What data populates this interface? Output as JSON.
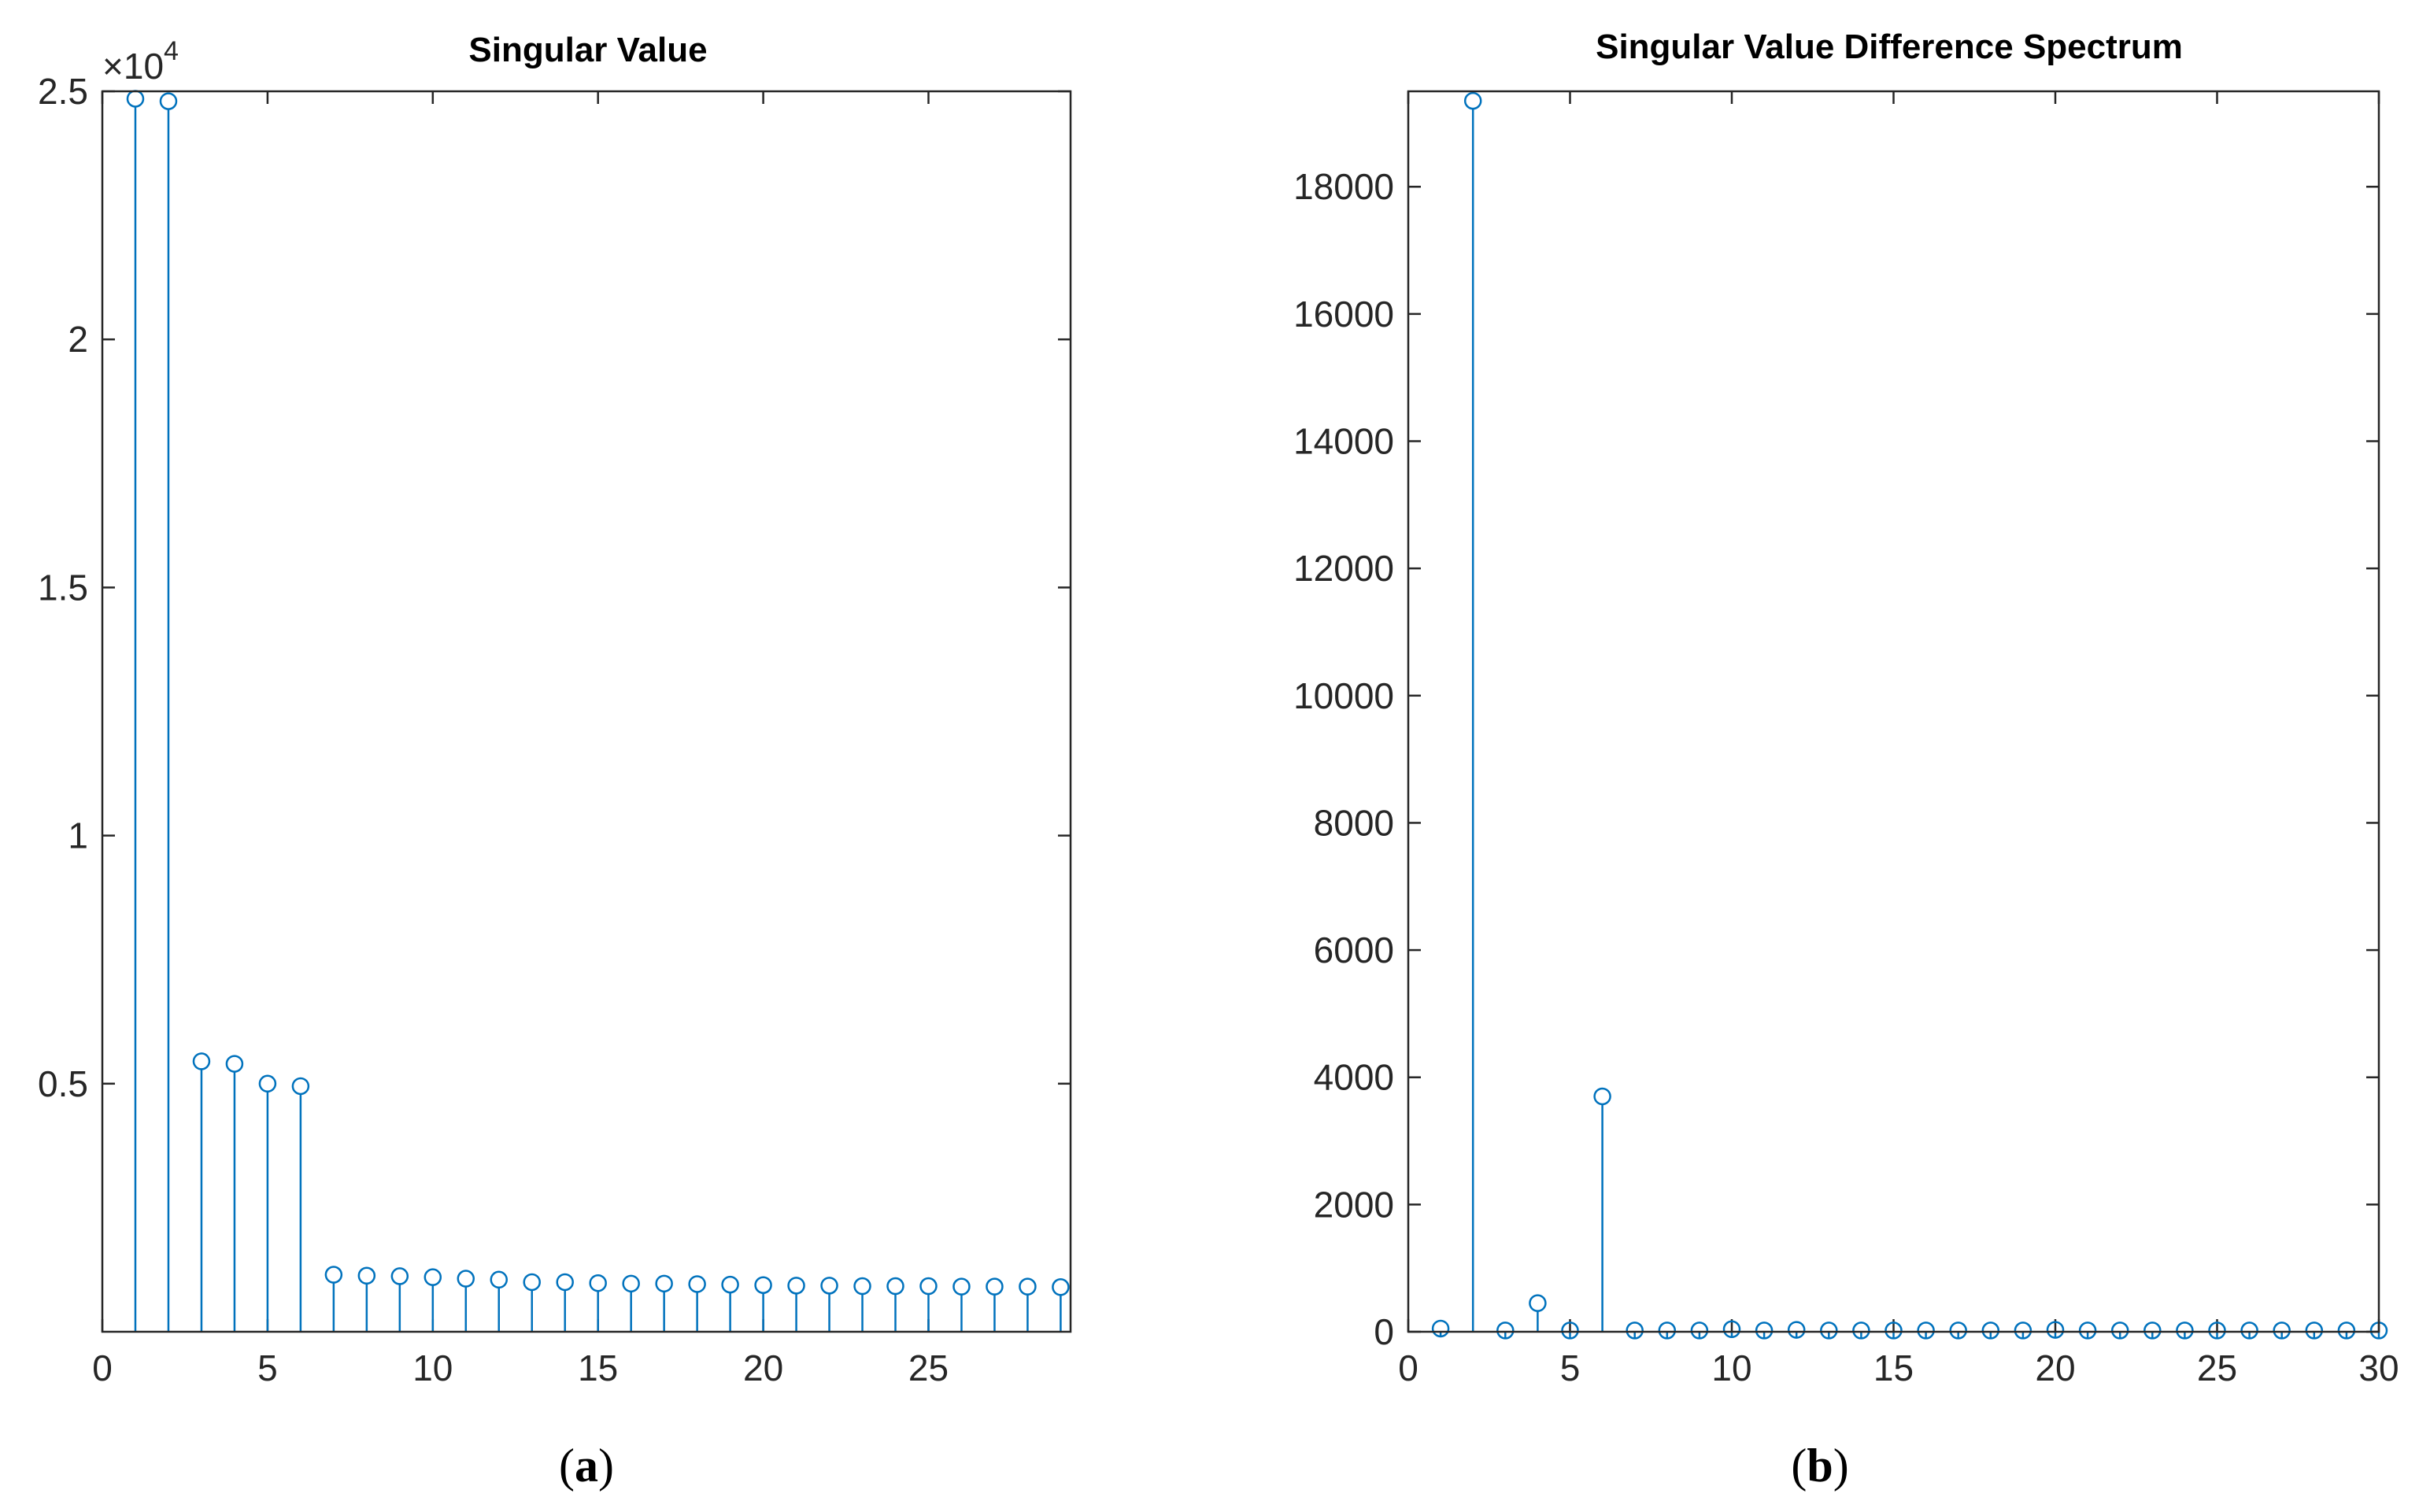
{
  "colors": {
    "series": "#0072BD",
    "axes": "#262626",
    "background": "#ffffff"
  },
  "chart_data": [
    {
      "type": "stem",
      "title": "Singular Value",
      "panel_label": {
        "open": "(",
        "letter": "a",
        "close": ")"
      },
      "y_exponent": {
        "base": "×10",
        "power": "4"
      },
      "xlim": [
        0,
        29.3
      ],
      "ylim": [
        0,
        2.5
      ],
      "xticks": [
        0,
        5,
        10,
        15,
        20,
        25
      ],
      "xtick_labels": [
        "0",
        "5",
        "10",
        "15",
        "20",
        "25"
      ],
      "yticks": [
        0.5,
        1,
        1.5,
        2,
        2.5
      ],
      "ytick_labels": [
        "0.5",
        "1",
        "1.5",
        "2",
        "2.5"
      ],
      "grid": false,
      "series": [
        {
          "x": [
            1,
            2,
            3,
            4,
            5,
            6,
            7,
            8,
            9,
            10,
            11,
            12,
            13,
            14,
            15,
            16,
            17,
            18,
            19,
            20,
            21,
            22,
            23,
            24,
            25,
            26,
            27,
            28,
            29
          ],
          "values": [
            2.485,
            2.48,
            0.545,
            0.54,
            0.5,
            0.495,
            0.115,
            0.113,
            0.112,
            0.11,
            0.107,
            0.105,
            0.1,
            0.1,
            0.098,
            0.097,
            0.097,
            0.096,
            0.095,
            0.094,
            0.093,
            0.093,
            0.092,
            0.092,
            0.092,
            0.091,
            0.091,
            0.091,
            0.09
          ]
        }
      ]
    },
    {
      "type": "stem",
      "title": "Singular Value Difference Spectrum",
      "panel_label": {
        "open": "(",
        "letter": "b",
        "close": ")"
      },
      "xlim": [
        0,
        30
      ],
      "ylim": [
        0,
        19500
      ],
      "xticks": [
        0,
        5,
        10,
        15,
        20,
        25,
        30
      ],
      "xtick_labels": [
        "0",
        "5",
        "10",
        "15",
        "20",
        "25",
        "30"
      ],
      "yticks": [
        0,
        2000,
        4000,
        6000,
        8000,
        10000,
        12000,
        14000,
        16000,
        18000
      ],
      "ytick_labels": [
        "0",
        "2000",
        "4000",
        "6000",
        "8000",
        "10000",
        "12000",
        "14000",
        "16000",
        "18000"
      ],
      "grid": false,
      "series": [
        {
          "x": [
            1,
            2,
            3,
            4,
            5,
            6,
            7,
            8,
            9,
            10,
            11,
            12,
            13,
            14,
            15,
            16,
            17,
            18,
            19,
            20,
            21,
            22,
            23,
            24,
            25,
            26,
            27,
            28,
            29,
            30
          ],
          "values": [
            50,
            19350,
            20,
            450,
            20,
            3700,
            20,
            20,
            20,
            40,
            20,
            30,
            20,
            20,
            20,
            20,
            20,
            20,
            20,
            30,
            20,
            20,
            20,
            20,
            20,
            20,
            20,
            20,
            20,
            20
          ]
        }
      ]
    }
  ]
}
